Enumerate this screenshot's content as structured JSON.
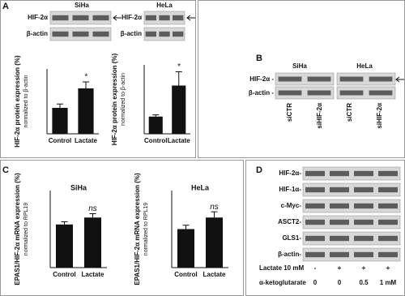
{
  "panel_labels": [
    "A",
    "B",
    "C",
    "D"
  ],
  "panel_a": {
    "blots": [
      {
        "cell": "SiHa",
        "rows": [
          "HIF-2α",
          "β-actin"
        ]
      },
      {
        "cell": "HeLa",
        "rows": [
          "HIF-2α",
          "β-actin"
        ]
      }
    ]
  },
  "panel_b": {
    "cells": [
      "SiHa",
      "HeLa"
    ],
    "rows": [
      "HIF-2α -",
      "β-actin -"
    ],
    "lanes": [
      "siCTR",
      "siHIF-2α",
      "siCTR",
      "siHIF-2α"
    ]
  },
  "panel_d": {
    "rows": [
      "HIF-2α-",
      "HIF-1α-",
      "c-Myc-",
      "ASCT2-",
      "GLS1-",
      "β-actin-"
    ],
    "treatments": [
      {
        "name": "Lactate 10 mM",
        "levels": [
          "-",
          "+",
          "+",
          "+"
        ]
      },
      {
        "name": "α-ketoglutarate",
        "levels": [
          "0",
          "0",
          "0.5",
          "1 mM"
        ]
      }
    ]
  },
  "chart_data": [
    {
      "type": "bar",
      "ylabel": "HIF-2α protein expression (%)",
      "ylabel_sub": "normalized to β-actin",
      "categories": [
        "Control",
        "Lactate"
      ],
      "values": [
        100,
        175
      ],
      "errors": [
        15,
        25
      ],
      "significance": [
        null,
        "*"
      ],
      "ylim": [
        0,
        250
      ],
      "color": "#111111"
    },
    {
      "type": "bar",
      "ylabel": "HIF-2α protein expression (%)",
      "ylabel_sub": "normalized to β-actin",
      "categories": [
        "Control",
        "Lactate"
      ],
      "values": [
        100,
        280
      ],
      "errors": [
        10,
        80
      ],
      "significance": [
        null,
        "*"
      ],
      "ylim": [
        0,
        400
      ],
      "color": "#111111"
    },
    {
      "type": "bar",
      "title": "SiHa",
      "ylabel": "EPAS1/HIF-2α mRNA expression (%)",
      "ylabel_sub": "normalized to RPL19",
      "categories": [
        "Control",
        "Lactate"
      ],
      "values": [
        1.12,
        1.3
      ],
      "errors": [
        0.07,
        0.1
      ],
      "significance": [
        null,
        "ns"
      ],
      "ylim": [
        0,
        2
      ],
      "color": "#111111"
    },
    {
      "type": "bar",
      "title": "HeLa",
      "ylabel": "EPAS1/HIF-2α mRNA expression (%)",
      "ylabel_sub": "normalized to RPL19",
      "categories": [
        "Control",
        "Lactate"
      ],
      "values": [
        1.0,
        1.3
      ],
      "errors": [
        0.1,
        0.15
      ],
      "significance": [
        null,
        "ns"
      ],
      "ylim": [
        0,
        2
      ],
      "color": "#111111"
    }
  ]
}
